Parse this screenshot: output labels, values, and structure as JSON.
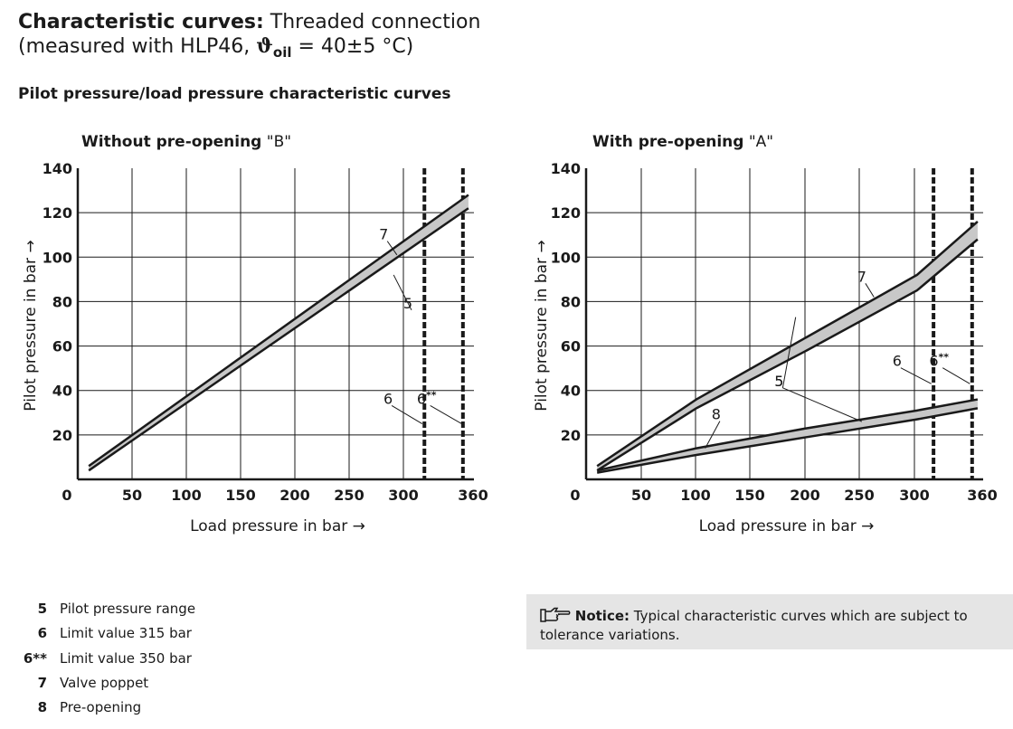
{
  "header": {
    "title_bold": "Characteristic curves:",
    "title_rest": "Threaded connection",
    "subtitle_pre": "(measured with HLP46, ",
    "subtitle_theta": "ϑ",
    "subtitle_sub": "oil",
    "subtitle_post": " = 40±5 °C)"
  },
  "section_title": "Pilot pressure/load pressure characteristic curves",
  "chart_data": [
    {
      "type": "line",
      "title_bold": "Without pre-opening",
      "title_rest": "\"B\"",
      "xlabel": "Load pressure in bar →",
      "ylabel": "Pilot pressure in bar →",
      "xlim": [
        0,
        360
      ],
      "ylim": [
        0,
        140
      ],
      "x_ticks": [
        50,
        100,
        150,
        200,
        250,
        300,
        360
      ],
      "y_ticks": [
        20,
        40,
        60,
        80,
        100,
        120,
        140
      ],
      "origin_label": "0",
      "grid": true,
      "bands": [
        {
          "name": "5 / 7",
          "upper": [
            [
              10,
              6
            ],
            [
              355,
              128
            ]
          ],
          "lower": [
            [
              10,
              4
            ],
            [
              355,
              122
            ]
          ]
        }
      ],
      "limit_lines": [
        {
          "x": 315,
          "label": "6"
        },
        {
          "x": 350,
          "label": "6**"
        }
      ],
      "annotations": [
        {
          "text": "7",
          "x": 278,
          "y": 108,
          "tx": 290,
          "ty": 101
        },
        {
          "text": "5",
          "x": 300,
          "y": 77,
          "tx": 287,
          "ty": 92
        },
        {
          "text": "6",
          "x": 282,
          "y": 34,
          "tx": 313,
          "ty": 25
        },
        {
          "text": "6**",
          "x": 317,
          "y": 34,
          "tx": 349,
          "ty": 25
        }
      ]
    },
    {
      "type": "line",
      "title_bold": "With pre-opening",
      "title_rest": "\"A\"",
      "xlabel": "Load pressure in bar →",
      "ylabel": "Pilot pressure in bar →",
      "xlim": [
        0,
        360
      ],
      "ylim": [
        0,
        140
      ],
      "x_ticks": [
        50,
        100,
        150,
        200,
        250,
        300,
        360
      ],
      "y_ticks": [
        20,
        40,
        60,
        80,
        100,
        120,
        140
      ],
      "origin_label": "0",
      "grid": true,
      "bands": [
        {
          "name": "5 / 7",
          "upper": [
            [
              10,
              6
            ],
            [
              100,
              36
            ],
            [
              200,
              64
            ],
            [
              300,
              92
            ],
            [
              355,
              116
            ]
          ],
          "lower": [
            [
              10,
              4
            ],
            [
              100,
              32
            ],
            [
              200,
              58
            ],
            [
              300,
              85
            ],
            [
              355,
              108
            ]
          ]
        },
        {
          "name": "5 / 8",
          "upper": [
            [
              10,
              4
            ],
            [
              100,
              14
            ],
            [
              200,
              23
            ],
            [
              300,
              31
            ],
            [
              355,
              36
            ]
          ],
          "lower": [
            [
              10,
              3
            ],
            [
              100,
              11
            ],
            [
              200,
              19
            ],
            [
              300,
              27
            ],
            [
              355,
              32
            ]
          ]
        }
      ],
      "limit_lines": [
        {
          "x": 315,
          "label": "6"
        },
        {
          "x": 350,
          "label": "6**"
        }
      ],
      "annotations": [
        {
          "text": "7",
          "x": 250,
          "y": 89,
          "tx": 261,
          "ty": 82
        },
        {
          "text": "5",
          "x": 175,
          "y": 42,
          "tx": 190,
          "ty": 73
        },
        {
          "text": "5",
          "x": 175,
          "y": 42,
          "tx": 250,
          "ty": 26
        },
        {
          "text": "8",
          "x": 118,
          "y": 27,
          "tx": 108,
          "ty": 14
        },
        {
          "text": "6",
          "x": 282,
          "y": 51,
          "tx": 313,
          "ty": 43
        },
        {
          "text": "6**",
          "x": 320,
          "y": 51,
          "tx": 348,
          "ty": 43
        }
      ]
    }
  ],
  "legend": [
    {
      "key": "5",
      "text": "Pilot pressure range"
    },
    {
      "key": "6",
      "text": "Limit value 315 bar"
    },
    {
      "key": "6**",
      "text": "Limit value 350 bar"
    },
    {
      "key": "7",
      "text": "Valve poppet"
    },
    {
      "key": "8",
      "text": "Pre-opening"
    }
  ],
  "notice": {
    "icon": "pointing-hand-icon",
    "label": "Notice:",
    "text": "Typical characteristic curves which are subject to tolerance variations."
  }
}
